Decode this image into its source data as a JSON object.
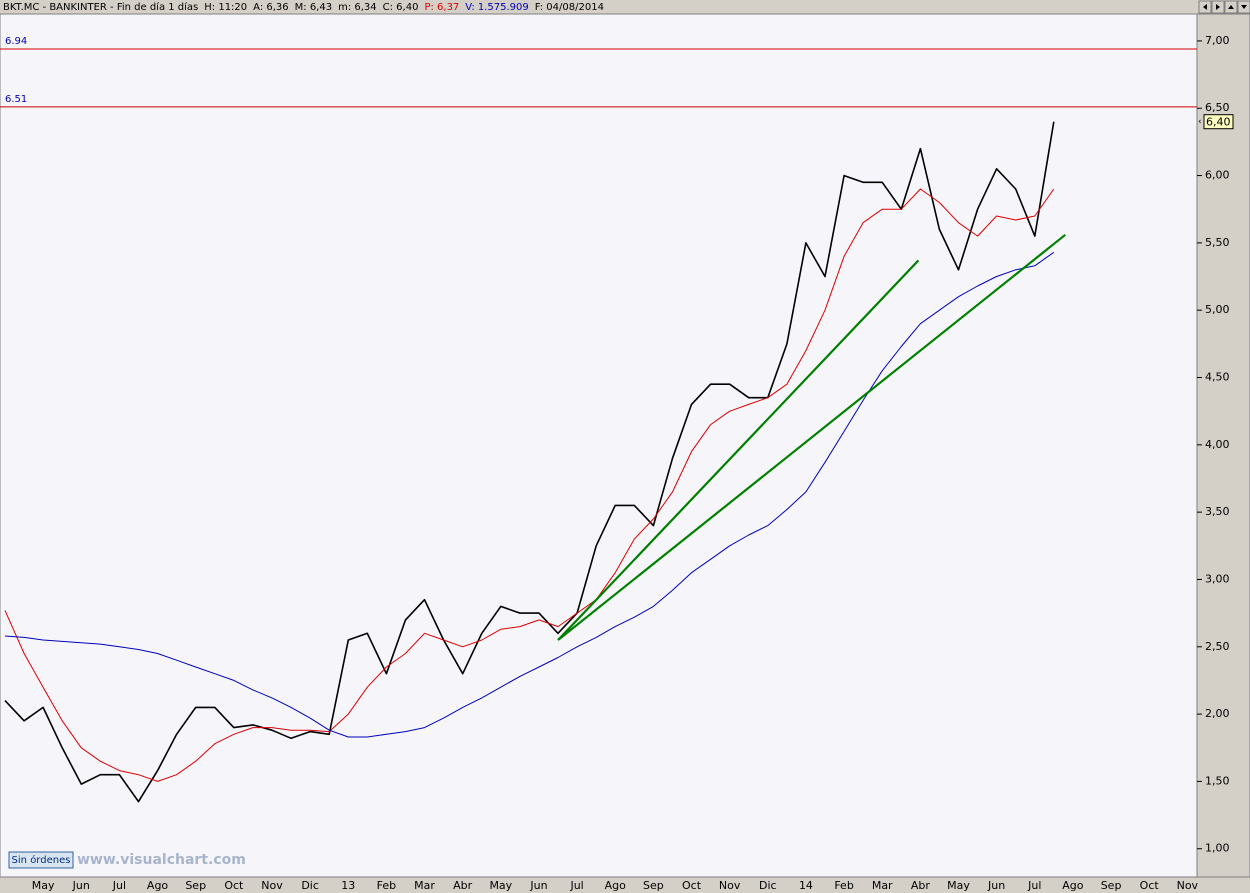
{
  "chart_data": {
    "type": "line",
    "header": [
      "BKT.MC - BANKINTER - Fin de día 1 días",
      "H: 11:20",
      "A: 6,36",
      "M: 6,43",
      "m: 6,34",
      "C: 6,40",
      "P: 6,37",
      "V: 1.575.909",
      "F: 04/08/2014"
    ],
    "categories": [
      null,
      null,
      "May",
      null,
      "Jun",
      null,
      "Jul",
      null,
      "Ago",
      null,
      "Sep",
      null,
      "Oct",
      null,
      "Nov",
      null,
      "Dic",
      null,
      "13",
      null,
      "Feb",
      null,
      "Mar",
      null,
      "Abr",
      null,
      "May",
      null,
      "Jun",
      null,
      "Jul",
      null,
      "Ago",
      null,
      "Sep",
      null,
      "Oct",
      null,
      "Nov",
      null,
      "Dic",
      null,
      "14",
      null,
      "Feb",
      null,
      "Mar",
      null,
      "Abr",
      null,
      "May",
      null,
      "Jun",
      null,
      "Jul",
      null,
      "Ago",
      null,
      "Sep",
      null,
      "Oct",
      null,
      "Nov"
    ],
    "series": [
      {
        "color": "#000000",
        "width": 1.6,
        "values": [
          2.1,
          1.95,
          2.05,
          1.75,
          1.48,
          1.55,
          1.55,
          1.35,
          1.58,
          1.85,
          2.05,
          2.05,
          1.9,
          1.92,
          1.88,
          1.82,
          1.87,
          1.85,
          2.55,
          2.6,
          2.3,
          2.7,
          2.85,
          2.55,
          2.3,
          2.6,
          2.8,
          2.75,
          2.75,
          2.6,
          2.75,
          3.25,
          3.55,
          3.55,
          3.4,
          3.9,
          4.3,
          4.45,
          4.45,
          4.35,
          4.35,
          4.75,
          5.5,
          5.25,
          6.0,
          5.95,
          5.95,
          5.75,
          6.2,
          5.6,
          5.3,
          5.75,
          6.05,
          5.9,
          5.55,
          6.4,
          null,
          null,
          null,
          null,
          null,
          null,
          null
        ]
      },
      {
        "color": "#dd0000",
        "width": 1,
        "values": [
          2.77,
          2.45,
          2.2,
          1.95,
          1.75,
          1.65,
          1.58,
          1.55,
          1.5,
          1.55,
          1.65,
          1.78,
          1.85,
          1.9,
          1.9,
          1.88,
          1.88,
          1.87,
          2.0,
          2.2,
          2.35,
          2.45,
          2.6,
          2.55,
          2.5,
          2.55,
          2.63,
          2.65,
          2.7,
          2.65,
          2.75,
          2.85,
          3.05,
          3.3,
          3.45,
          3.65,
          3.95,
          4.15,
          4.25,
          4.3,
          4.35,
          4.45,
          4.7,
          5.0,
          5.4,
          5.65,
          5.75,
          5.75,
          5.9,
          5.8,
          5.65,
          5.55,
          5.7,
          5.67,
          5.7,
          5.9,
          null,
          null,
          null,
          null,
          null,
          null,
          null
        ]
      },
      {
        "color": "#0000bb",
        "width": 1,
        "values": [
          2.58,
          2.57,
          2.55,
          2.54,
          2.53,
          2.52,
          2.5,
          2.48,
          2.45,
          2.4,
          2.35,
          2.3,
          2.25,
          2.18,
          2.12,
          2.05,
          1.97,
          1.88,
          1.83,
          1.83,
          1.85,
          1.87,
          1.9,
          1.97,
          2.05,
          2.12,
          2.2,
          2.28,
          2.35,
          2.42,
          2.5,
          2.57,
          2.65,
          2.72,
          2.8,
          2.92,
          3.05,
          3.15,
          3.25,
          3.33,
          3.4,
          3.52,
          3.65,
          3.87,
          4.1,
          4.33,
          4.55,
          4.73,
          4.9,
          5.0,
          5.1,
          5.18,
          5.25,
          5.3,
          5.33,
          5.43,
          null,
          null,
          null,
          null,
          null,
          null,
          null
        ]
      }
    ],
    "trendlines": [
      {
        "x1": 29,
        "y1": 2.55,
        "x2": 47.9,
        "y2": 5.37
      },
      {
        "x1": 29,
        "y1": 2.55,
        "x2": 55.6,
        "y2": 5.56
      }
    ],
    "trend_color": "#008000",
    "hlines": [
      6.94,
      6.51
    ],
    "hline_color": "#cc0000",
    "last_label": {
      "value": 6.4,
      "label": "6,40"
    },
    "ylim": [
      0.79,
      7.2
    ],
    "yticks": [
      {
        "value": 1,
        "label": "1,00"
      },
      {
        "value": 1.5,
        "label": "1,50"
      },
      {
        "value": 2,
        "label": "2,00"
      },
      {
        "value": 2.5,
        "label": "2,50"
      },
      {
        "value": 3,
        "label": "3,00"
      },
      {
        "value": 3.5,
        "label": "3,50"
      },
      {
        "value": 4,
        "label": "4,00"
      },
      {
        "value": 4.5,
        "label": "4,50"
      },
      {
        "value": 5,
        "label": "5,00"
      },
      {
        "value": 5.5,
        "label": "5,50"
      },
      {
        "value": 6,
        "label": "6,00"
      },
      {
        "value": 6.5,
        "label": "6,50"
      },
      {
        "value": 7,
        "label": "7,00"
      }
    ],
    "grid": false
  },
  "footer": {
    "button": "Sin órdenes",
    "watermark": "www.visualchart.com"
  }
}
